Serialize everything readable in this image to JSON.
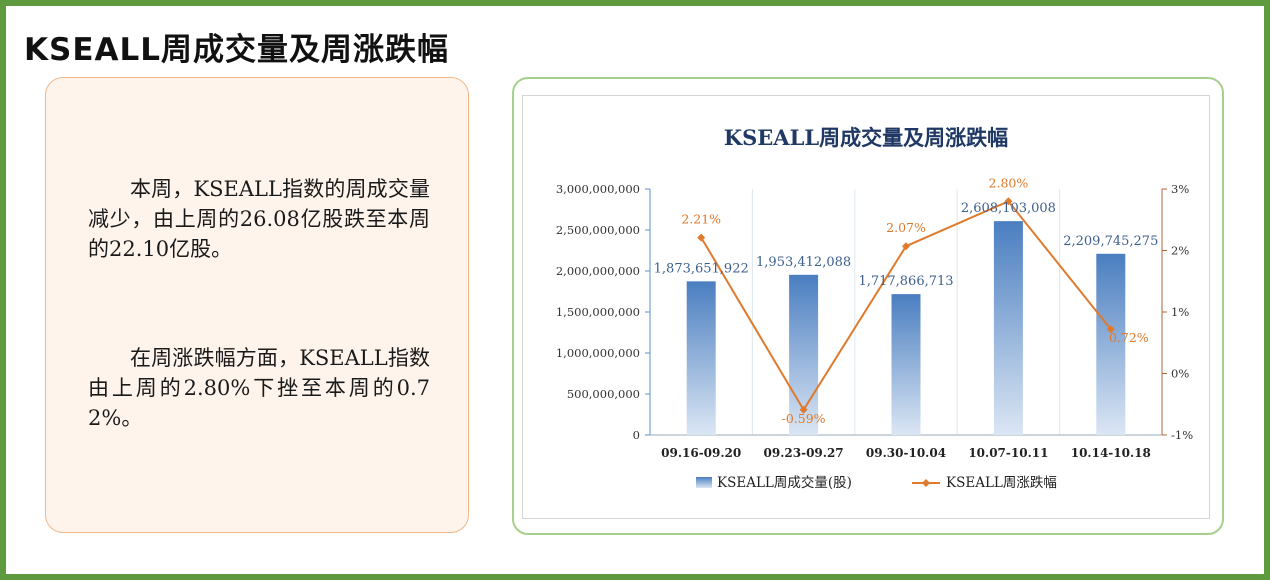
{
  "page": {
    "title": "KSEALL周成交量及周涨跌幅"
  },
  "summary": {
    "paragraph_1": "本周，KSEALL指数的周成交量减少，由上周的26.08亿股跌至本周的22.10亿股。",
    "paragraph_2": "在周涨跌幅方面，KSEALL指数由上周的2.80%下挫至本周的0.72%。"
  },
  "colors": {
    "frame": "#5e9a3e",
    "bar_top": "#4a7ec0",
    "bar_bottom": "#dbe6f4",
    "line": "#e07a2c",
    "title": "#1f3864"
  },
  "chart_data": {
    "type": "bar+line",
    "title": "KSEALL周成交量及周涨跌幅",
    "categories": [
      "09.16-09.20",
      "09.23-09.27",
      "09.30-10.04",
      "10.07-10.11",
      "10.14-10.18"
    ],
    "series": [
      {
        "name": "KSEALL周成交量(股)",
        "type": "bar",
        "axis": "left",
        "values": [
          1873651922,
          1953412088,
          1717866713,
          2608103008,
          2209745275
        ],
        "labels": [
          "1,873,651,922",
          "1,953,412,088",
          "1,717,866,713",
          "2,608,103,008",
          "2,209,745,275"
        ]
      },
      {
        "name": "KSEALL周涨跌幅",
        "type": "line",
        "axis": "right",
        "values": [
          2.21,
          -0.59,
          2.07,
          2.8,
          0.72
        ],
        "labels": [
          "2.21%",
          "-0.59%",
          "2.07%",
          "2.80%",
          "0.72%"
        ]
      }
    ],
    "y_left": {
      "range": [
        0,
        3000000000
      ],
      "ticks": [
        0,
        500000000,
        1000000000,
        1500000000,
        2000000000,
        2500000000,
        3000000000
      ],
      "tick_labels": [
        "0",
        "500,000,000",
        "1,000,000,000",
        "1,500,000,000",
        "2,000,000,000",
        "2,500,000,000",
        "3,000,000,000"
      ]
    },
    "y_right": {
      "range": [
        -1,
        3
      ],
      "ticks": [
        -1,
        0,
        1,
        2,
        3
      ],
      "tick_labels": [
        "-1%",
        "0%",
        "1%",
        "2%",
        "3%"
      ]
    },
    "grid": "vertical category separators",
    "legend": "bottom"
  }
}
